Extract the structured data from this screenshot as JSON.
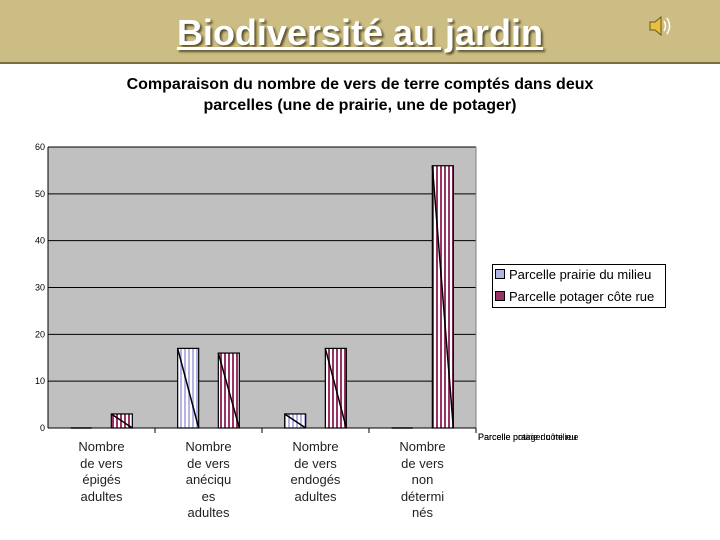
{
  "slide": {
    "title": "Biodiversité au jardin",
    "speaker_icon": "speaker-icon"
  },
  "chart_data": {
    "type": "bar",
    "title": "Comparaison du nombre de vers de terre comptés dans deux parcelles  (une de prairie, une de potager)",
    "title_lines": [
      "Comparaison du nombre de vers de terre comptés dans deux",
      "parcelles  (une de prairie, une de potager)"
    ],
    "categories": [
      [
        "Nombre",
        "de vers",
        "épigés",
        "adultes"
      ],
      [
        "Nombre",
        "de vers",
        "anéciqu",
        "es",
        "adultes"
      ],
      [
        "Nombre",
        "de vers",
        "endogés",
        "adultes"
      ],
      [
        "Nombre",
        "de vers",
        "non",
        "détermi",
        "nés"
      ]
    ],
    "series": [
      {
        "name": "Parcelle prairie du milieu",
        "color": "#b3b3e6",
        "values": [
          0,
          17,
          3,
          0
        ]
      },
      {
        "name": "Parcelle potager côte rue",
        "color": "#993366",
        "values": [
          3,
          16,
          17,
          56
        ]
      }
    ],
    "yticks": [
      "0",
      "10",
      "20",
      "30",
      "40",
      "50",
      "60"
    ],
    "ylim": [
      0,
      60
    ],
    "grid": true,
    "legend_position": "right",
    "extra_labels": [
      "Parcelle prairie du milieu",
      "Parcelle potager côte rue"
    ]
  }
}
